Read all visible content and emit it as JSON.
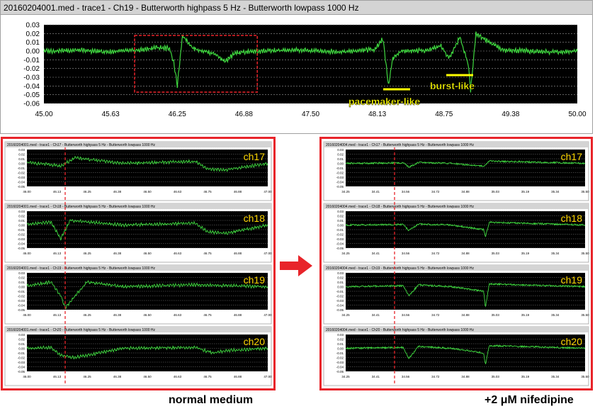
{
  "main": {
    "title": "20160204001.med - trace1 - Ch19 - Butterworth highpass 5 Hz - Butterworth lowpass 1000 Hz",
    "yticks": [
      "0.03",
      "0.02",
      "0.01",
      "0.00",
      "-0.01",
      "-0.02",
      "-0.03",
      "-0.04",
      "-0.05",
      "-0.06"
    ],
    "xticks": [
      "45.00",
      "45.63",
      "46.25",
      "46.88",
      "47.50",
      "48.13",
      "48.75",
      "49.38",
      "50.00"
    ],
    "annotations": {
      "pacemaker": "pacemaker-like",
      "burst": "burst-like"
    }
  },
  "left_panel": {
    "caption": "normal medium",
    "yticks": [
      "0.03",
      "0.02",
      "0.01",
      "0.00",
      "-0.01",
      "-0.02",
      "-0.03",
      "-0.04",
      "-0.05"
    ],
    "xticks": [
      "46.00",
      "46.13",
      "46.25",
      "46.38",
      "46.50",
      "46.63",
      "46.75",
      "46.88",
      "47.00"
    ],
    "traces": [
      {
        "title": "20160204001.med - trace1 - Ch17 - Butterworth highpass 5 Hz - Butterworth lowpass 1000 Hz",
        "label": "ch17"
      },
      {
        "title": "20160204001.med - trace1 - Ch18 - Butterworth highpass 5 Hz - Butterworth lowpass 1000 Hz",
        "label": "ch18"
      },
      {
        "title": "20160204001.med - trace1 - Ch19 - Butterworth highpass 5 Hz - Butterworth lowpass 1000 Hz",
        "label": "ch19"
      },
      {
        "title": "20160204001.med - trace1 - Ch20 - Butterworth highpass 5 Hz - Butterworth lowpass 1000 Hz",
        "label": "ch20"
      }
    ]
  },
  "right_panel": {
    "caption": "+2 μM nifedipine",
    "yticks": [
      "0.03",
      "0.02",
      "0.01",
      "0.00",
      "-0.01",
      "-0.02",
      "-0.03",
      "-0.04",
      "-0.05"
    ],
    "xticks": [
      "34.25",
      "34.41",
      "34.56",
      "34.72",
      "34.88",
      "35.03",
      "35.19",
      "35.34",
      "35.50"
    ],
    "traces": [
      {
        "title": "20160204004.med - trace1 - Ch17 - Butterworth highpass 5 Hz - Butterworth lowpass 1000 Hz",
        "label": "ch17"
      },
      {
        "title": "20160204004.med - trace1 - Ch18 - Butterworth highpass 5 Hz - Butterworth lowpass 1000 Hz",
        "label": "ch18"
      },
      {
        "title": "20160204004.med - trace1 - Ch19 - Butterworth highpass 5 Hz - Butterworth lowpass 1000 Hz",
        "label": "ch19"
      },
      {
        "title": "20160204004.med - trace1 - Ch20 - Butterworth highpass 5 Hz - Butterworth lowpass 1000 Hz",
        "label": "ch20"
      }
    ]
  },
  "colors": {
    "trace": "#3fd83f",
    "plot_bg": "#000000",
    "grid": "#9a9a9a",
    "highlight": "#e8242a",
    "label": "#ffd700",
    "annot": "#ffff00"
  },
  "chart_data": [
    {
      "type": "line",
      "title": "20160204001.med - trace1 - Ch19 - Butterworth highpass 5 Hz - Butterworth lowpass 1000 Hz",
      "xlim": [
        45.0,
        50.0
      ],
      "ylim": [
        -0.06,
        0.03
      ],
      "grid": true,
      "series": [
        {
          "x": [
            45.0,
            45.3,
            45.6,
            45.9,
            46.05,
            46.18,
            46.22,
            46.25,
            46.3,
            46.4,
            46.6,
            46.7,
            46.8,
            47.0,
            47.4,
            47.8,
            48.1,
            48.18,
            48.23,
            48.27,
            48.35,
            48.6,
            48.72,
            48.8,
            48.9,
            48.98,
            49.0,
            49.05,
            49.3,
            49.7,
            50.0
          ],
          "y": [
            0.0,
            0.001,
            -0.001,
            0.001,
            0.004,
            0.003,
            -0.015,
            -0.04,
            0.018,
            0.003,
            -0.003,
            -0.012,
            -0.002,
            0.0,
            0.001,
            -0.001,
            0.002,
            0.014,
            -0.04,
            -0.008,
            0.0,
            0.001,
            0.006,
            -0.008,
            0.016,
            -0.016,
            -0.045,
            0.02,
            0.001,
            -0.001,
            0.0
          ]
        }
      ],
      "annotations": [
        "pacemaker-like",
        "burst-like"
      ]
    },
    {
      "type": "line",
      "title": "normal medium",
      "xlim": [
        46.0,
        47.0
      ],
      "ylim": [
        -0.05,
        0.03
      ],
      "series": [
        {
          "name": "ch17",
          "x": [
            46.0,
            46.1,
            46.14,
            46.2,
            46.4,
            46.7,
            46.75,
            46.83,
            47.0
          ],
          "y": [
            0.002,
            -0.003,
            -0.006,
            0.012,
            0.0,
            0.004,
            -0.012,
            -0.014,
            0.0
          ]
        },
        {
          "name": "ch18",
          "x": [
            46.0,
            46.1,
            46.14,
            46.18,
            46.4,
            46.7,
            46.75,
            46.83,
            47.0
          ],
          "y": [
            0.002,
            0.006,
            -0.03,
            0.01,
            0.0,
            0.004,
            -0.015,
            -0.018,
            0.0
          ]
        },
        {
          "name": "ch19",
          "x": [
            46.0,
            46.1,
            46.14,
            46.16,
            46.25,
            46.4,
            46.7,
            47.0
          ],
          "y": [
            0.002,
            0.01,
            -0.02,
            -0.045,
            0.01,
            0.0,
            0.004,
            0.0
          ]
        },
        {
          "name": "ch20",
          "x": [
            46.0,
            46.1,
            46.14,
            46.2,
            46.4,
            46.7,
            46.77,
            46.83,
            47.0
          ],
          "y": [
            0.0,
            0.002,
            -0.015,
            -0.02,
            0.0,
            0.002,
            -0.01,
            -0.005,
            0.0
          ]
        }
      ]
    },
    {
      "type": "line",
      "title": "+2 μM nifedipine",
      "xlim": [
        34.25,
        35.5
      ],
      "ylim": [
        -0.05,
        0.03
      ],
      "series": [
        {
          "name": "ch17",
          "x": [
            34.25,
            34.55,
            34.58,
            34.63,
            34.8,
            34.97,
            35.0,
            35.5
          ],
          "y": [
            0.0,
            0.001,
            -0.008,
            0.002,
            0.0,
            -0.006,
            0.005,
            0.0
          ]
        },
        {
          "name": "ch18",
          "x": [
            34.25,
            34.55,
            34.58,
            34.63,
            34.8,
            34.97,
            34.98,
            35.0,
            35.5
          ],
          "y": [
            0.0,
            0.001,
            -0.012,
            0.002,
            0.0,
            -0.01,
            -0.025,
            0.006,
            0.0
          ]
        },
        {
          "name": "ch19",
          "x": [
            34.25,
            34.55,
            34.58,
            34.63,
            34.8,
            34.97,
            34.98,
            35.0,
            35.5
          ],
          "y": [
            0.0,
            0.002,
            -0.02,
            0.004,
            0.0,
            -0.01,
            -0.045,
            0.006,
            0.0
          ]
        },
        {
          "name": "ch20",
          "x": [
            34.25,
            34.55,
            34.58,
            34.63,
            34.8,
            34.97,
            34.98,
            35.0,
            35.5
          ],
          "y": [
            0.0,
            0.002,
            -0.022,
            0.004,
            0.0,
            -0.01,
            -0.035,
            0.006,
            0.0
          ]
        }
      ]
    }
  ]
}
